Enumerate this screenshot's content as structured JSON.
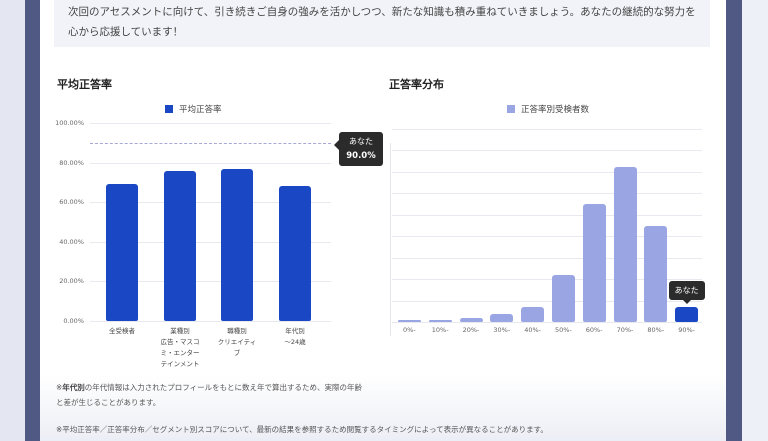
{
  "message": {
    "line1": "次回のアセスメントに向けて、引き続きご自身の強みを活かしつつ、新たな知識も積み重ねていきましょう。あなたの継続的な努力を",
    "line2": "心から応援しています！"
  },
  "left_section": {
    "title": "平均正答率",
    "legend": "平均正答率",
    "y_ticks": [
      "100.00%",
      "80.00%",
      "60.00%",
      "40.00%",
      "20.00%",
      "0.00%"
    ],
    "x_labels": [
      [
        "全受検者"
      ],
      [
        "業種別",
        "広告・マスコ",
        "ミ・エンター",
        "テインメント"
      ],
      [
        "職種別",
        "クリエイティ",
        "ブ"
      ],
      [
        "年代別",
        "〜24歳"
      ]
    ],
    "tooltip": {
      "label": "あなた",
      "value": "90.0%"
    }
  },
  "right_section": {
    "title": "正答率分布",
    "legend": "正答率別受検者数",
    "x_labels": [
      "0%-",
      "10%-",
      "20%-",
      "30%-",
      "40%-",
      "50%-",
      "60%-",
      "70%-",
      "80%-",
      "90%-"
    ],
    "tooltip": {
      "label": "あなた"
    }
  },
  "notes": {
    "age_note_bold": "年代別",
    "age_note_prefix": "※",
    "age_note_rest1": "の年代情報は入力されたプロフィールをもとに数え年で算出するため、実際の年齢",
    "age_note_rest2": "と差が生じることがあります。",
    "timing_note": "※平均正答率／正答率分布／セグメント別スコアについて、最新の結果を参照するため閲覧するタイミングによって表示が異なることがあります。"
  },
  "colors": {
    "primary_bar": "#1a47c4",
    "distribution_bar": "#9aa6e4",
    "highlight_bar": "#1a47c4",
    "dashed_line": "#a8a8d8",
    "tooltip_bg": "#2b2b2b",
    "frame": "#4f5983"
  },
  "chart_data": [
    {
      "type": "bar",
      "title": "平均正答率",
      "legend": [
        "平均正答率"
      ],
      "categories": [
        "全受検者",
        "業種別 広告・マスコミ・エンターテインメント",
        "職種別 クリエイティブ",
        "年代別 〜24歳"
      ],
      "series": [
        {
          "name": "平均正答率",
          "values": [
            69,
            76,
            77,
            68
          ]
        }
      ],
      "reference_line": {
        "label": "あなた",
        "value": 90.0
      },
      "ylabel": "",
      "xlabel": "",
      "ylim": [
        0,
        100
      ],
      "y_ticks": [
        0,
        20,
        40,
        60,
        80,
        100
      ],
      "y_tick_format": "0.00%",
      "grid": true,
      "legend_position": "top"
    },
    {
      "type": "bar",
      "title": "正答率分布",
      "legend": [
        "正答率別受検者数"
      ],
      "categories": [
        "0%-",
        "10%-",
        "20%-",
        "30%-",
        "40%-",
        "50%-",
        "60%-",
        "70%-",
        "80%-",
        "90%-"
      ],
      "series": [
        {
          "name": "正答率別受検者数",
          "values": [
            0.1,
            0.1,
            0.2,
            0.35,
            0.7,
            2.2,
            5.5,
            7.2,
            4.45,
            0.7
          ]
        }
      ],
      "highlight": {
        "category": "90%-",
        "label": "あなた"
      },
      "ylabel": "",
      "xlabel": "",
      "ylim": [
        0,
        9
      ],
      "y_tick_labels_visible": false,
      "grid": true,
      "legend_position": "top"
    }
  ]
}
